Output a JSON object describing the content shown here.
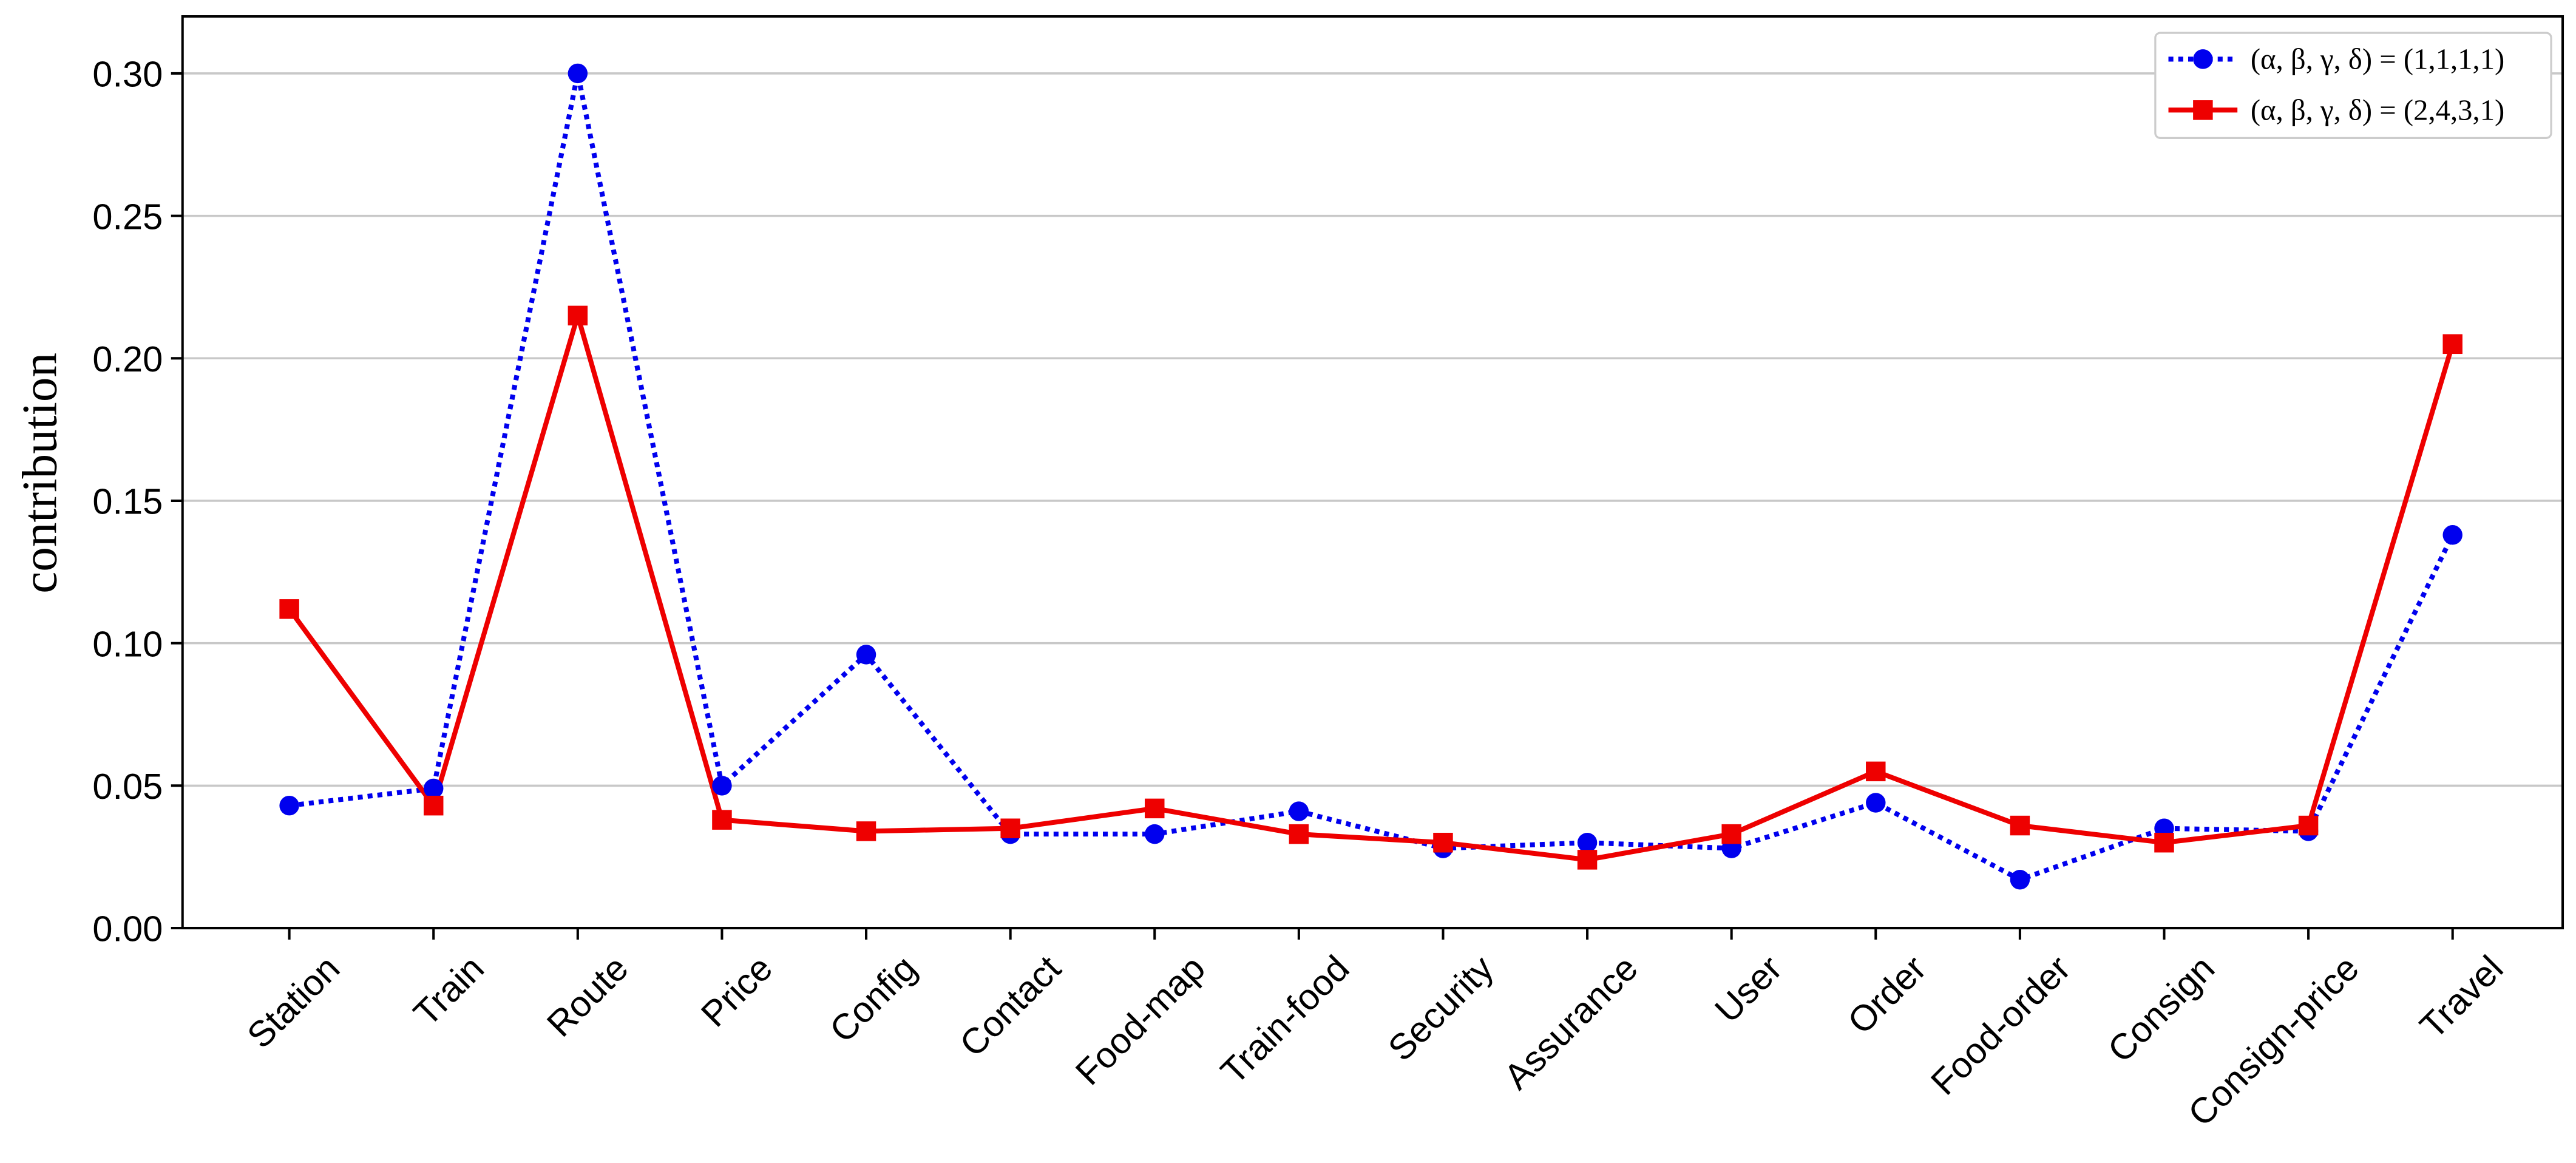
{
  "chart_data": {
    "type": "line",
    "ylabel": "contribution",
    "categories": [
      "Station",
      "Train",
      "Route",
      "Price",
      "Config",
      "Contact",
      "Food-map",
      "Train-food",
      "Security",
      "Assurance",
      "User",
      "Order",
      "Food-order",
      "Consign",
      "Consign-price",
      "Travel"
    ],
    "series": [
      {
        "name": "(α, β, γ, δ) = (1,1,1,1)",
        "color": "#0000ee",
        "linestyle": "dotted",
        "marker": "circle",
        "values": [
          0.043,
          0.049,
          0.3,
          0.05,
          0.096,
          0.033,
          0.033,
          0.041,
          0.028,
          0.03,
          0.028,
          0.044,
          0.017,
          0.035,
          0.034,
          0.138
        ]
      },
      {
        "name": "(α, β, γ, δ) = (2,4,3,1)",
        "color": "#ee0000",
        "linestyle": "solid",
        "marker": "square",
        "values": [
          0.112,
          0.043,
          0.215,
          0.038,
          0.034,
          0.035,
          0.042,
          0.033,
          0.03,
          0.024,
          0.033,
          0.055,
          0.036,
          0.03,
          0.036,
          0.205
        ]
      }
    ],
    "ylim": [
      0,
      0.32
    ],
    "yticks": [
      {
        "value": 0,
        "label": "0.00"
      },
      {
        "value": 0.05,
        "label": "0.05"
      },
      {
        "value": 0.1,
        "label": "0.10"
      },
      {
        "value": 0.15,
        "label": "0.15"
      },
      {
        "value": 0.2,
        "label": "0.20"
      },
      {
        "value": 0.25,
        "label": "0.25"
      },
      {
        "value": 0.3,
        "label": "0.30"
      }
    ],
    "grid": true,
    "legend": "upper right"
  }
}
